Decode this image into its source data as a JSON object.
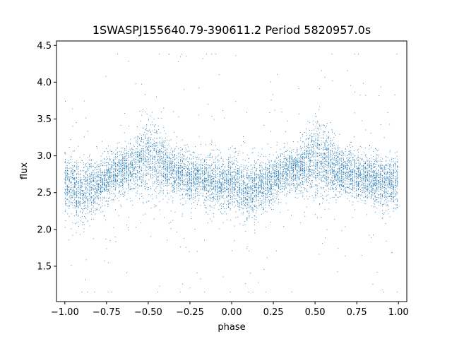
{
  "chart_data": {
    "type": "scatter",
    "title": "1SWASPJ155640.79-390611.2 Period 5820957.0s",
    "xlabel": "phase",
    "ylabel": "flux",
    "xlim": [
      -1.05,
      1.05
    ],
    "ylim": [
      1.02,
      4.56
    ],
    "xticks": [
      -1.0,
      -0.75,
      -0.5,
      -0.25,
      0.0,
      0.25,
      0.5,
      0.75,
      1.0
    ],
    "xtick_labels": [
      "−1.00",
      "−0.75",
      "−0.50",
      "−0.25",
      "0.00",
      "0.25",
      "0.50",
      "0.75",
      "1.00"
    ],
    "yticks": [
      1.5,
      2.0,
      2.5,
      3.0,
      3.5,
      4.0,
      4.5
    ],
    "ytick_labels": [
      "1.5",
      "2.0",
      "2.5",
      "3.0",
      "3.5",
      "4.0",
      "4.5"
    ],
    "grid": false,
    "marker_color": "#1f77b4",
    "note_profile": "folded light curve; mean flux vs phase, repeated every 1.0 in phase",
    "profile": {
      "phase": [
        0.0,
        0.05,
        0.1,
        0.15,
        0.2,
        0.25,
        0.3,
        0.35,
        0.4,
        0.45,
        0.5,
        0.55,
        0.6,
        0.65,
        0.7,
        0.75,
        0.8,
        0.85,
        0.9,
        0.95,
        1.0
      ],
      "flux": [
        2.65,
        2.58,
        2.52,
        2.58,
        2.62,
        2.68,
        2.75,
        2.8,
        2.82,
        2.9,
        2.98,
        2.95,
        2.88,
        2.78,
        2.75,
        2.72,
        2.7,
        2.68,
        2.66,
        2.62,
        2.65
      ],
      "spread": [
        0.18,
        0.2,
        0.2,
        0.18,
        0.16,
        0.16,
        0.15,
        0.15,
        0.16,
        0.22,
        0.28,
        0.26,
        0.2,
        0.17,
        0.16,
        0.16,
        0.16,
        0.17,
        0.18,
        0.18,
        0.18
      ]
    },
    "point_count": 9000
  }
}
